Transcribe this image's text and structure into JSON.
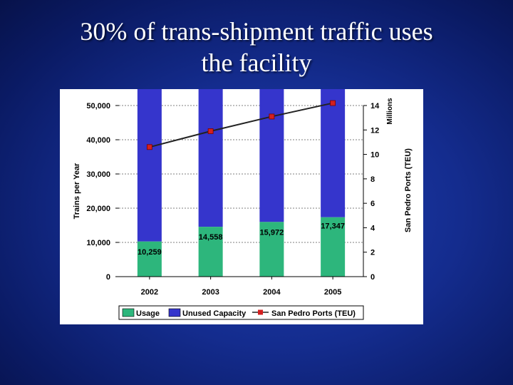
{
  "slide": {
    "title_line1": "30% of trans-shipment traffic uses",
    "title_line2": "the facility"
  },
  "chart_data": {
    "type": "bar",
    "stacked": true,
    "categories": [
      "2002",
      "2003",
      "2004",
      "2005"
    ],
    "series": [
      {
        "name": "Usage",
        "values": [
          10259,
          14558,
          15972,
          17347
        ],
        "color": "#2db67c",
        "labels": [
          "10,259",
          "14,558",
          "15,972",
          "17,347"
        ]
      },
      {
        "name": "Unused Capacity",
        "values": [
          44741,
          40442,
          39028,
          37653
        ],
        "color": "#3535cc"
      }
    ],
    "line_series": {
      "name": "San Pedro Ports (TEU)",
      "values": [
        10.6,
        11.9,
        13.1,
        14.2
      ],
      "color": "#222222",
      "marker_color": "#d42020",
      "axis": "right"
    },
    "ylabel": "Trains per Year",
    "y2label": "San Pedro Ports (TEU)",
    "y2_unit": "Millions",
    "ylim": [
      0,
      50000
    ],
    "y2lim": [
      0,
      14
    ],
    "yticks": [
      "0",
      "10,000",
      "20,000",
      "30,000",
      "40,000",
      "50,000"
    ],
    "y2ticks": [
      "0",
      "2",
      "4",
      "6",
      "8",
      "10",
      "12",
      "14"
    ],
    "legend_position": "bottom",
    "grid": true
  }
}
